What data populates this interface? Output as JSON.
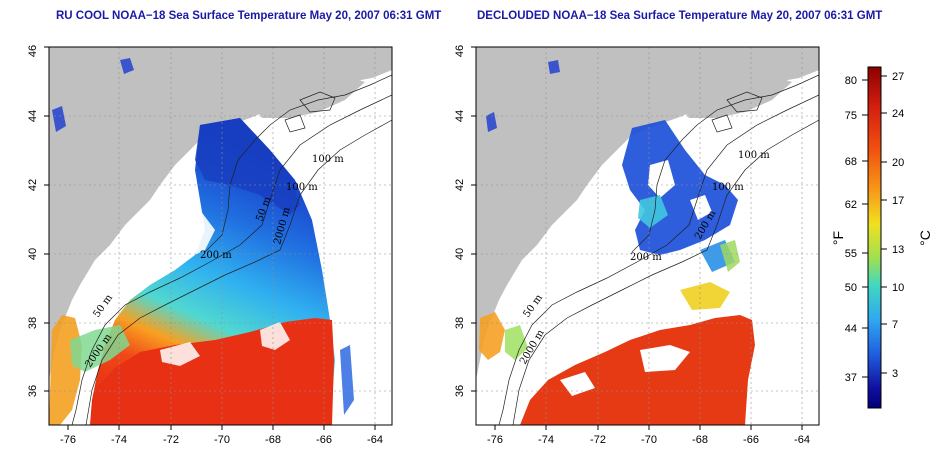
{
  "panels": [
    {
      "title": "RU COOL NOAA−18 Sea Surface Temperature May 20, 2007 06:31 GMT",
      "x_ticks": [
        "-76",
        "-74",
        "-72",
        "-70",
        "-68",
        "-66",
        "-64"
      ],
      "y_ticks": [
        "36",
        "38",
        "40",
        "42",
        "44",
        "46"
      ],
      "contour_labels": [
        "100 m",
        "100 m",
        "50 m",
        "200 m",
        "50 m",
        "2000 m",
        "2000 m"
      ]
    },
    {
      "title": "DECLOUDED NOAA−18 Sea Surface Temperature May 20, 2007 06:31 GMT",
      "x_ticks": [
        "-76",
        "-74",
        "-72",
        "-70",
        "-68",
        "-66",
        "-64"
      ],
      "y_ticks": [
        "36",
        "38",
        "40",
        "42",
        "44",
        "46"
      ],
      "contour_labels": [
        "100 m",
        "100 m",
        "200 m",
        "200 m",
        "50 m",
        "2000 m"
      ]
    }
  ],
  "colorbar": {
    "fahrenheit_label": "°F",
    "celsius_label": "°C",
    "fahrenheit_ticks": [
      "80",
      "75",
      "68",
      "62",
      "55",
      "50",
      "44",
      "37"
    ],
    "celsius_ticks": [
      "27",
      "24",
      "20",
      "17",
      "13",
      "10",
      "7",
      "3"
    ],
    "gradient": [
      "#8b0000",
      "#d42010",
      "#f05010",
      "#f89818",
      "#f0e020",
      "#a0e050",
      "#40d8c0",
      "#30a8f0",
      "#2060e0",
      "#1010a0",
      "#00007a"
    ]
  },
  "colors": {
    "land": "#c0c0c0",
    "ocean_missing": "#ffffff",
    "title": "#1a1aa6"
  },
  "map_extent": {
    "lon": [
      -77,
      -63
    ],
    "lat": [
      35,
      46
    ]
  }
}
